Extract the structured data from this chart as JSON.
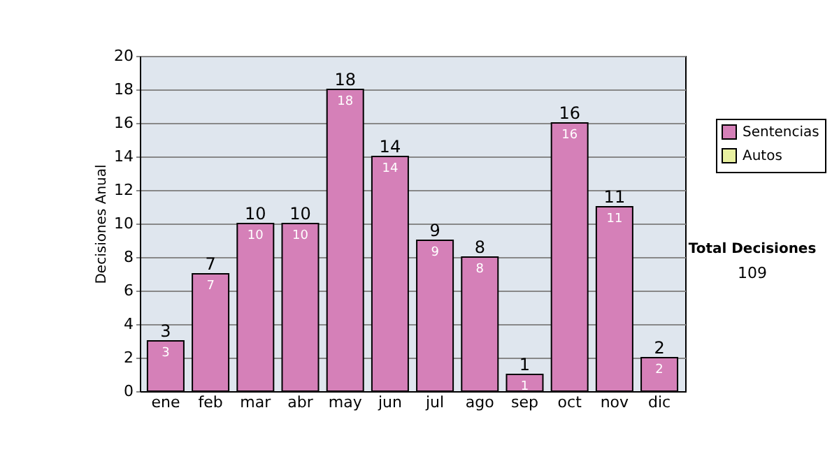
{
  "chart_data": {
    "type": "bar",
    "ylabel": "Decisiones Anual",
    "categories": [
      "ene",
      "feb",
      "mar",
      "abr",
      "may",
      "jun",
      "jul",
      "ago",
      "sep",
      "oct",
      "nov",
      "dic"
    ],
    "series": [
      {
        "name": "Sentencias",
        "color": "#d580b8",
        "values": [
          3,
          7,
          10,
          10,
          18,
          14,
          9,
          8,
          1,
          16,
          11,
          2
        ]
      },
      {
        "name": "Autos",
        "color": "#e8f0a0",
        "values": [
          null,
          null,
          null,
          null,
          null,
          null,
          null,
          null,
          null,
          null,
          null,
          null
        ]
      }
    ],
    "ylim": [
      0,
      20
    ],
    "yticks": [
      0,
      2,
      4,
      6,
      8,
      10,
      12,
      14,
      16,
      18,
      20
    ],
    "grid": "y",
    "legend": "right",
    "data_labels": true,
    "annotations": [
      "Total Decisiones",
      "109",
      {
        "text": "3",
        "x": "ene",
        "y": 3
      },
      {
        "text": "7",
        "x": "feb",
        "y": 7
      },
      {
        "text": "10",
        "x": "mar",
        "y": 10
      },
      {
        "text": "10",
        "x": "abr",
        "y": 10
      },
      {
        "text": "18",
        "x": "may",
        "y": 18
      },
      {
        "text": "14",
        "x": "jun",
        "y": 14
      },
      {
        "text": "9",
        "x": "jul",
        "y": 9
      },
      {
        "text": "8",
        "x": "ago",
        "y": 8
      },
      {
        "text": "1",
        "x": "sep",
        "y": 1
      },
      {
        "text": "16",
        "x": "oct",
        "y": 16
      },
      {
        "text": "11",
        "x": "nov",
        "y": 11
      },
      {
        "text": "2",
        "x": "dic",
        "y": 2
      }
    ]
  }
}
